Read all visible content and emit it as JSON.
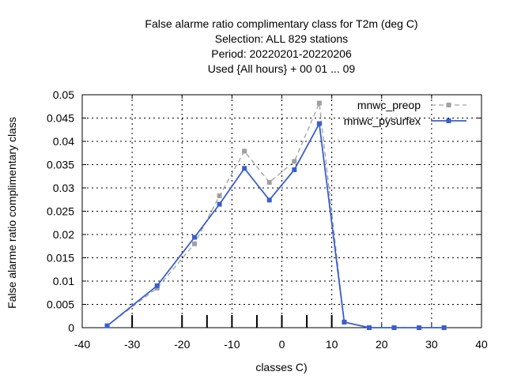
{
  "chart_data": {
    "type": "line",
    "title_lines": [
      "False alarme ratio complimentary class  for T2m (deg C)",
      "Selection: ALL    829 stations",
      "Period: 20220201-20220206",
      "Used {All hours} + 00 01 ... 09"
    ],
    "xlabel": "classes C)",
    "ylabel": "False alarme ratio complimentary class",
    "xlim": [
      -40,
      40
    ],
    "ylim": [
      0,
      0.05
    ],
    "xticks": [
      -40,
      -30,
      -20,
      -10,
      0,
      10,
      20,
      30,
      40
    ],
    "xtick_labels": [
      "-40",
      "-30",
      "-20",
      "-10",
      "0",
      "10",
      "20",
      "30",
      "40"
    ],
    "yticks": [
      0,
      0.005,
      0.01,
      0.015,
      0.02,
      0.025,
      0.03,
      0.035,
      0.04,
      0.045,
      0.05
    ],
    "ytick_labels": [
      "0",
      "0.005",
      "0.01",
      "0.015",
      "0.02",
      "0.025",
      "0.03",
      "0.035",
      "0.04",
      "0.045",
      "0.05"
    ],
    "class_markers": [
      -30,
      -20,
      -15,
      -10,
      -5,
      0,
      5,
      10
    ],
    "grid": true,
    "legend_position": "top-right",
    "x": [
      -35,
      -25,
      -17.5,
      -12.5,
      -7.5,
      -2.5,
      2.5,
      7.5,
      12.5,
      17.5,
      22.5,
      27.5,
      32.5
    ],
    "series": [
      {
        "name": "mnwc_preop",
        "color": "#a0a0a0",
        "dash": true,
        "values": [
          0.0004,
          0.0085,
          0.018,
          0.0283,
          0.0379,
          0.0312,
          0.0357,
          0.0482,
          0.0012,
          0.0,
          0.0,
          0.0,
          0.0
        ]
      },
      {
        "name": "mnwc_pysurfex",
        "color": "#3a5fcd",
        "dash": false,
        "values": [
          0.0004,
          0.009,
          0.0194,
          0.0265,
          0.0342,
          0.0274,
          0.0339,
          0.0438,
          0.0012,
          0.0,
          0.0,
          0.0,
          0.0
        ]
      }
    ]
  }
}
